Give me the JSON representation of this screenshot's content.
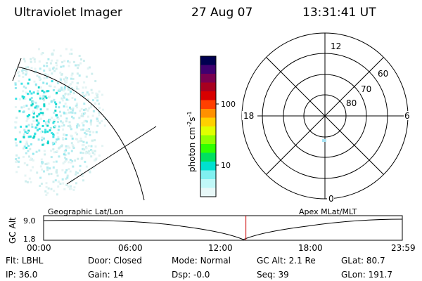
{
  "header": {
    "instrument": "Ultraviolet Imager",
    "date": "27 Aug 07",
    "time": "13:31:41 UT"
  },
  "colorbar": {
    "unit_label": "photon cm",
    "unit_exp1": "-2",
    "unit_s": "s",
    "unit_exp2": "-1",
    "ticks": [
      "100",
      "10"
    ],
    "scale": "log",
    "colors": [
      "#000050",
      "#400070",
      "#7a0050",
      "#a80020",
      "#d80000",
      "#ff4000",
      "#ff9000",
      "#ffd000",
      "#e0ff00",
      "#90ff00",
      "#30ff00",
      "#00e060",
      "#00e0d0",
      "#80f0f0",
      "#c0f8f8",
      "#e8f8f8"
    ]
  },
  "polar_plot": {
    "mlt_labels": [
      "12",
      "18",
      "6",
      "0"
    ],
    "mlat_labels": [
      "60",
      "70",
      "80"
    ]
  },
  "timeline": {
    "ylabel": "GC Alt",
    "left_label": "Geographic Lat/Lon",
    "right_label": "Apex MLat/MLT",
    "y_ticks": [
      "9.0",
      "1.8"
    ],
    "x_ticks": [
      "00:00",
      "06:00",
      "12:00",
      "18:00",
      "23:59"
    ],
    "current_time_fraction": 0.564,
    "marker_color": "#cc0000"
  },
  "status": {
    "filter_label": "Flt:",
    "filter_value": "LBHL",
    "ip_label": "IP:",
    "ip_value": "36.0",
    "door_label": "Door:",
    "door_value": "Closed",
    "gain_label": "Gain:",
    "gain_value": "14",
    "mode_label": "Mode:",
    "mode_value": "Normal",
    "dsp_label": "Dsp:",
    "dsp_value": "-0.0",
    "gcalt_label": "GC Alt:",
    "gcalt_value": "2.1 Re",
    "seq_label": "Seq:",
    "seq_value": "39",
    "glat_label": "GLat:",
    "glat_value": "80.7",
    "glon_label": "GLon:",
    "glon_value": "191.7"
  }
}
